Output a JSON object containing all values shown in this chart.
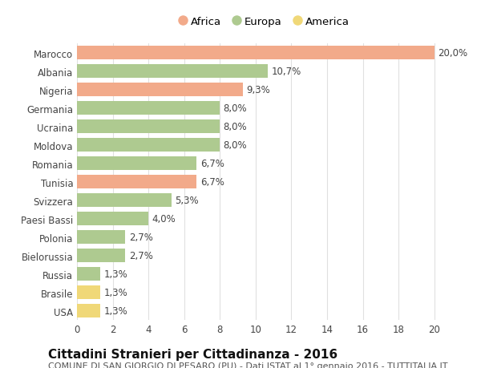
{
  "categories": [
    "Marocco",
    "Albania",
    "Nigeria",
    "Germania",
    "Ucraina",
    "Moldova",
    "Romania",
    "Tunisia",
    "Svizzera",
    "Paesi Bassi",
    "Polonia",
    "Bielorussia",
    "Russia",
    "Brasile",
    "USA"
  ],
  "values": [
    20.0,
    10.7,
    9.3,
    8.0,
    8.0,
    8.0,
    6.7,
    6.7,
    5.3,
    4.0,
    2.7,
    2.7,
    1.3,
    1.3,
    1.3
  ],
  "labels": [
    "20,0%",
    "10,7%",
    "9,3%",
    "8,0%",
    "8,0%",
    "8,0%",
    "6,7%",
    "6,7%",
    "5,3%",
    "4,0%",
    "2,7%",
    "2,7%",
    "1,3%",
    "1,3%",
    "1,3%"
  ],
  "colors": [
    "#F2AA8A",
    "#AECA90",
    "#F2AA8A",
    "#AECA90",
    "#AECA90",
    "#AECA90",
    "#AECA90",
    "#F2AA8A",
    "#AECA90",
    "#AECA90",
    "#AECA90",
    "#AECA90",
    "#AECA90",
    "#F0D878",
    "#F0D878"
  ],
  "legend_labels": [
    "Africa",
    "Europa",
    "America"
  ],
  "legend_colors": [
    "#F2AA8A",
    "#AECA90",
    "#F0D878"
  ],
  "title": "Cittadini Stranieri per Cittadinanza - 2016",
  "subtitle": "COMUNE DI SAN GIORGIO DI PESARO (PU) - Dati ISTAT al 1° gennaio 2016 - TUTTITALIA.IT",
  "xlim": [
    0,
    21
  ],
  "xticks": [
    0,
    2,
    4,
    6,
    8,
    10,
    12,
    14,
    16,
    18,
    20
  ],
  "background_color": "#ffffff",
  "grid_color": "#e0e0e0",
  "bar_height": 0.72,
  "title_fontsize": 11,
  "subtitle_fontsize": 8,
  "label_fontsize": 8.5,
  "tick_fontsize": 8.5
}
